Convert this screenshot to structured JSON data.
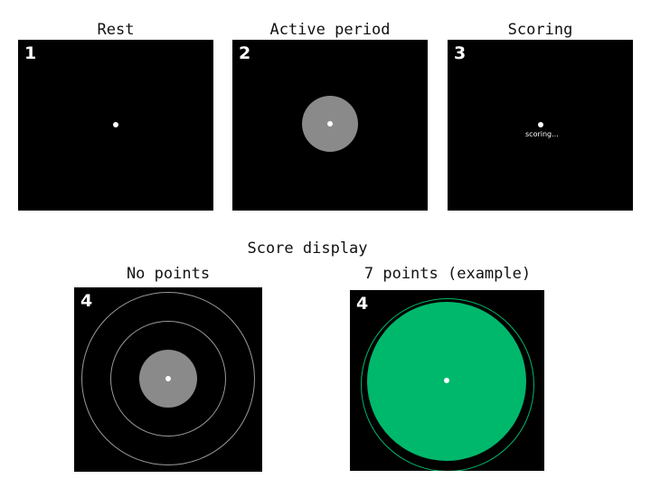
{
  "panels": [
    {
      "title": "Rest",
      "number": "1"
    },
    {
      "title": "Active period",
      "number": "2"
    },
    {
      "title": "Scoring",
      "number": "3",
      "status_text": "scoring..."
    },
    {
      "title": "No points",
      "number": "4"
    },
    {
      "title": "7 points (example)",
      "number": "4"
    }
  ],
  "section_title": "Score display",
  "colors": {
    "background": "#000000",
    "fixation_dot": "#ffffff",
    "target_gray": "#8a8a8a",
    "ring_gray": "#9a9a9a",
    "score_green": "#00b86b"
  }
}
